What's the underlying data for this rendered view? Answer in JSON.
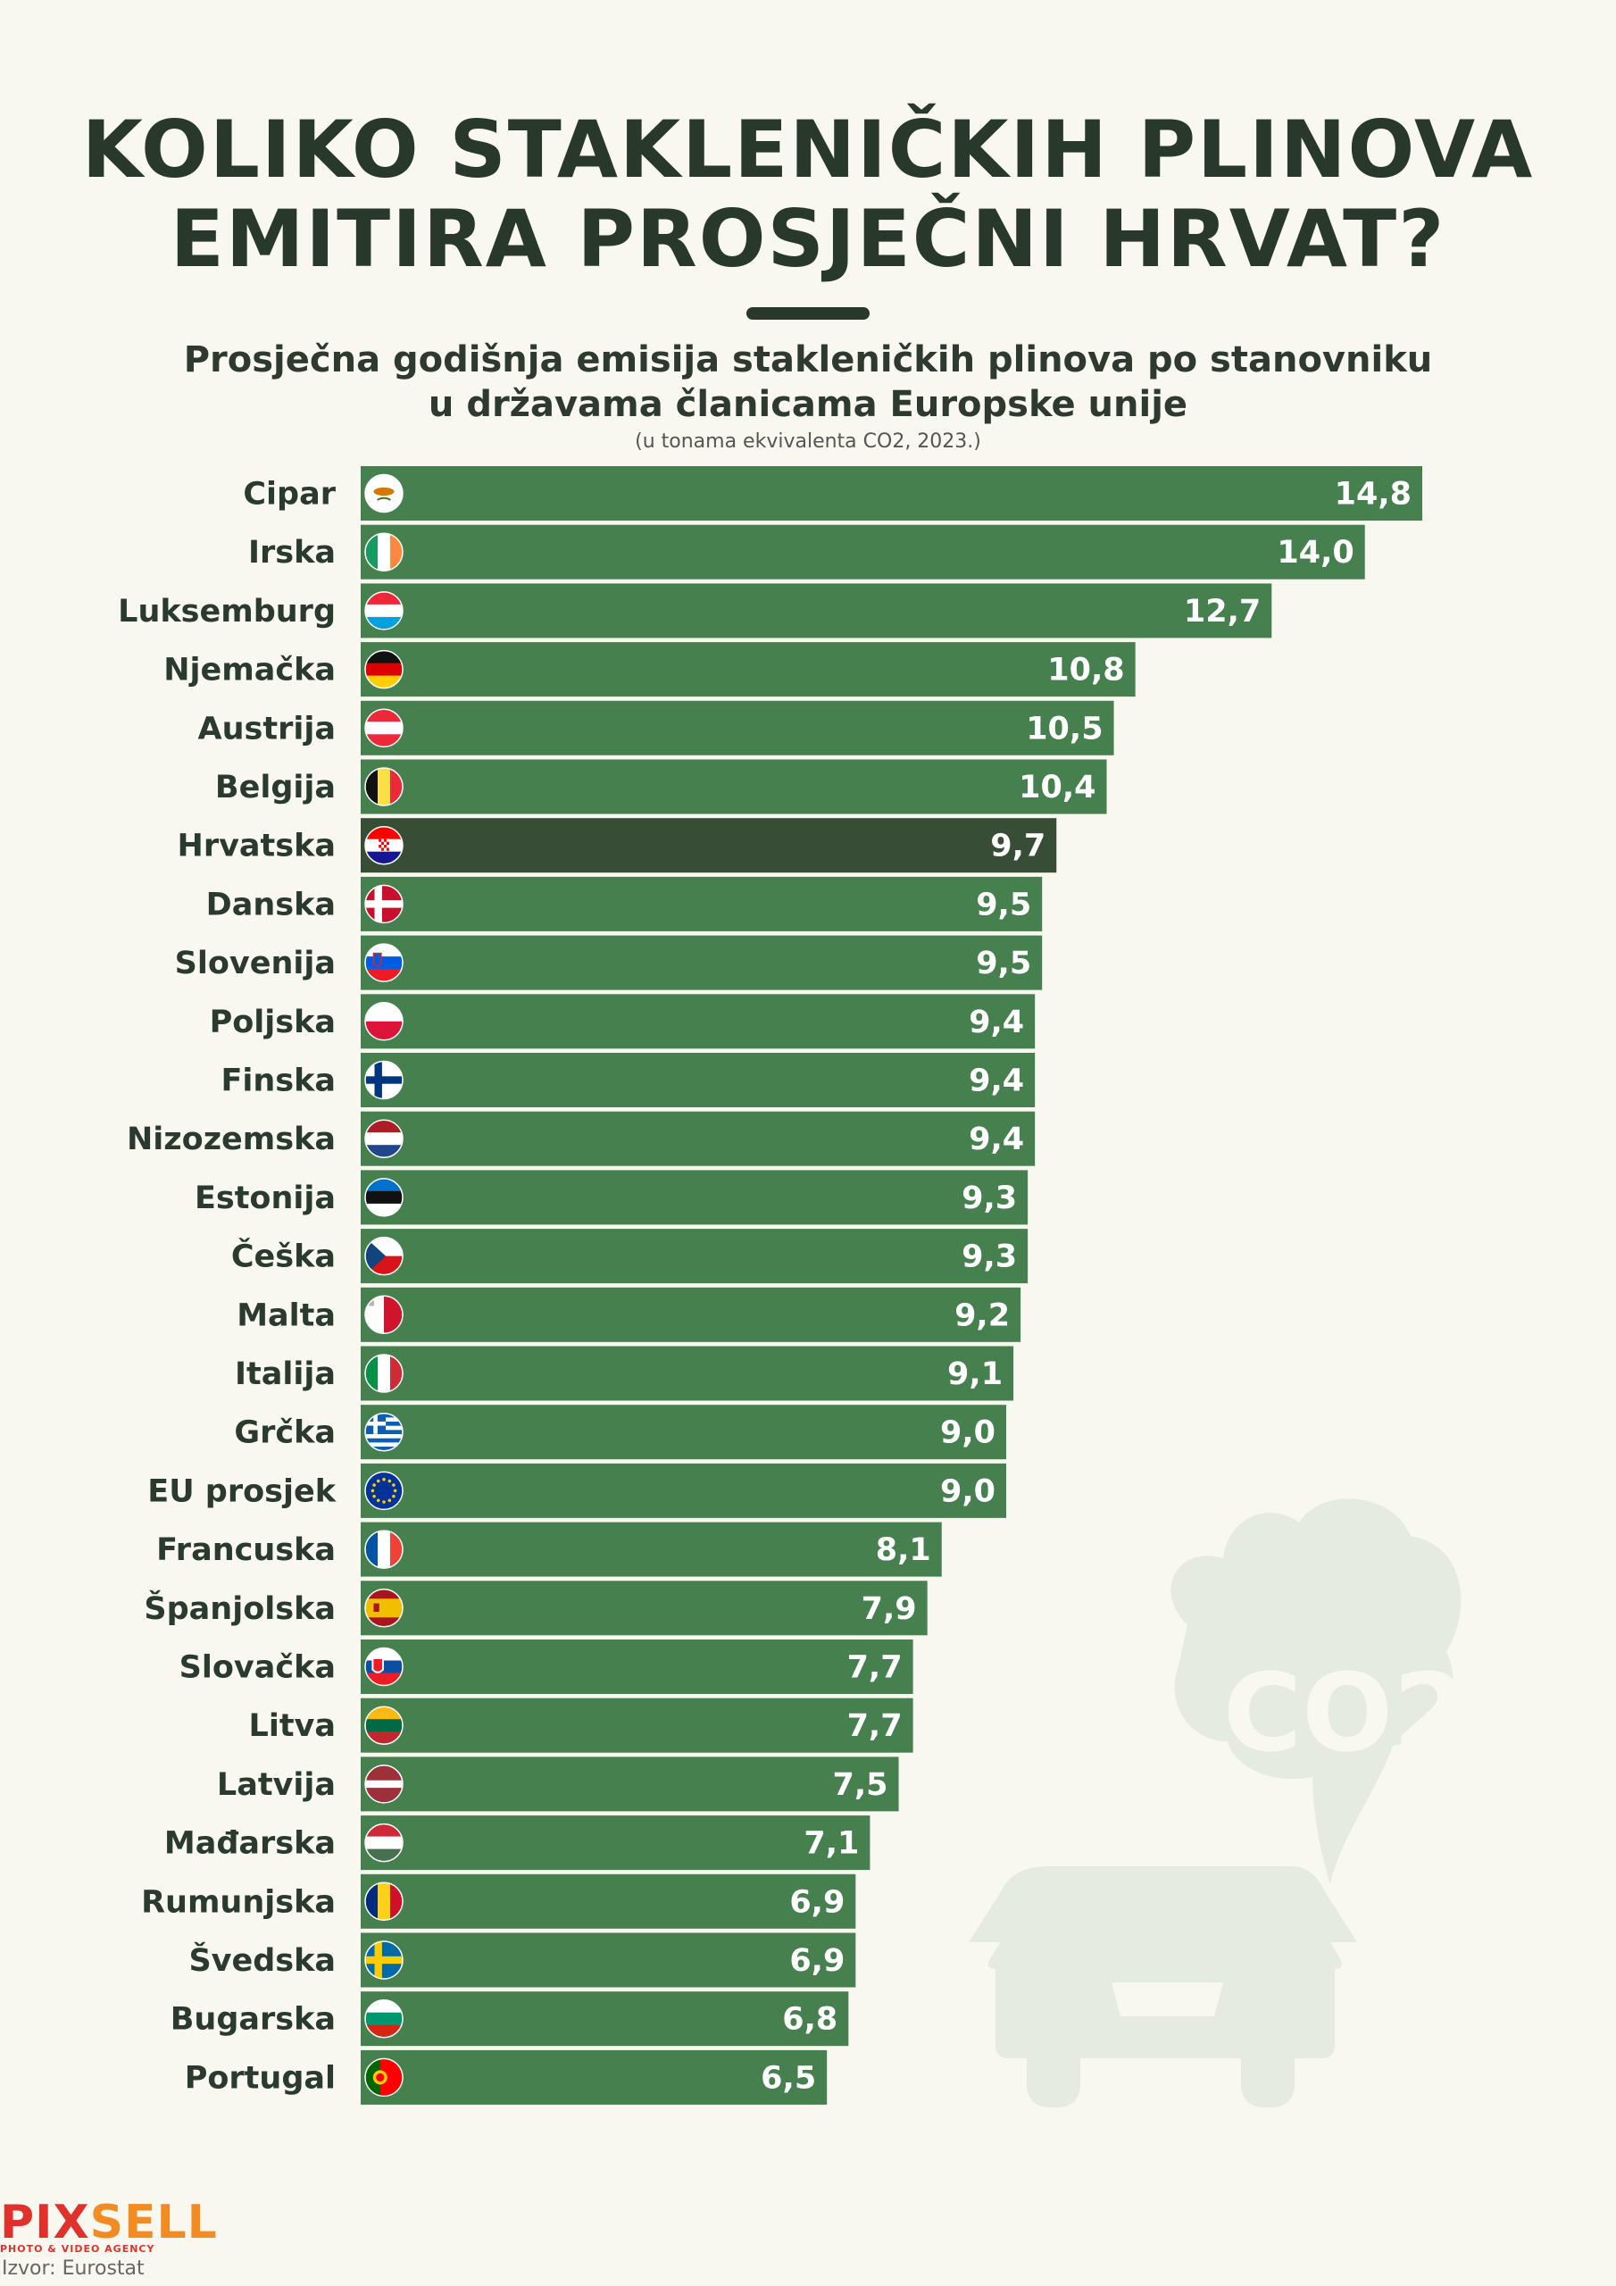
{
  "title_line1": "KOLIKO STAKLENIČKIH PLINOVA",
  "title_line2": "EMITIRA PROSJEČNI HRVAT?",
  "subtitle_line1": "Prosječna godišnja emisija stakleničkih plinova po stanovniku",
  "subtitle_line2": "u državama članicama Europske unije",
  "unit_note": "(u tonama ekvivalenta CO2, 2023.)",
  "decoration_text": "CO2",
  "colors": {
    "bar": "#46804f",
    "highlight": "#374d35",
    "decoration": "#e5ebe0"
  },
  "chart_data": {
    "type": "bar",
    "orientation": "horizontal",
    "title": "Prosječna godišnja emisija stakleničkih plinova po stanovniku u državama članicama Europske unije",
    "unit": "tone ekvivalenta CO2, 2023.",
    "highlight": "Hrvatska",
    "categories": [
      "Cipar",
      "Irska",
      "Luksemburg",
      "Njemačka",
      "Austrija",
      "Belgija",
      "Hrvatska",
      "Danska",
      "Slovenija",
      "Poljska",
      "Finska",
      "Nizozemska",
      "Estonija",
      "Češka",
      "Malta",
      "Italija",
      "Grčka",
      "EU prosjek",
      "Francuska",
      "Španjolska",
      "Slovačka",
      "Litva",
      "Latvija",
      "Mađarska",
      "Rumunjska",
      "Švedska",
      "Bugarska",
      "Portugal"
    ],
    "values": [
      14.8,
      14.0,
      12.7,
      10.8,
      10.5,
      10.4,
      9.7,
      9.5,
      9.5,
      9.4,
      9.4,
      9.4,
      9.3,
      9.3,
      9.2,
      9.1,
      9.0,
      9.0,
      8.1,
      7.9,
      7.7,
      7.7,
      7.5,
      7.1,
      6.9,
      6.9,
      6.8,
      6.5
    ],
    "value_labels": [
      "14,8",
      "14,0",
      "12,7",
      "10,8",
      "10,5",
      "10,4",
      "9,7",
      "9,5",
      "9,5",
      "9,4",
      "9,4",
      "9,4",
      "9,3",
      "9,3",
      "9,2",
      "9,1",
      "9,0",
      "9,0",
      "8,1",
      "7,9",
      "7,7",
      "7,7",
      "7,5",
      "7,1",
      "6,9",
      "6,9",
      "6,8",
      "6,5"
    ],
    "flags": [
      "flag-cy",
      "flag-ie",
      "flag-lu",
      "flag-de",
      "flag-at",
      "flag-be",
      "flag-hr",
      "flag-dk",
      "flag-si",
      "flag-pl",
      "flag-fi",
      "flag-nl",
      "flag-ee",
      "flag-cz",
      "flag-mt",
      "flag-it",
      "flag-gr",
      "flag-eu",
      "flag-fr",
      "flag-es",
      "flag-sk",
      "flag-lt",
      "flag-lv",
      "flag-hu",
      "flag-ro",
      "flag-se",
      "flag-bg",
      "flag-pt"
    ],
    "xlim": [
      0,
      14.8
    ]
  },
  "logo": {
    "name": "PIXSELL",
    "tagline": "PHOTO & VIDEO AGENCY"
  },
  "source": "Izvor: Eurostat"
}
